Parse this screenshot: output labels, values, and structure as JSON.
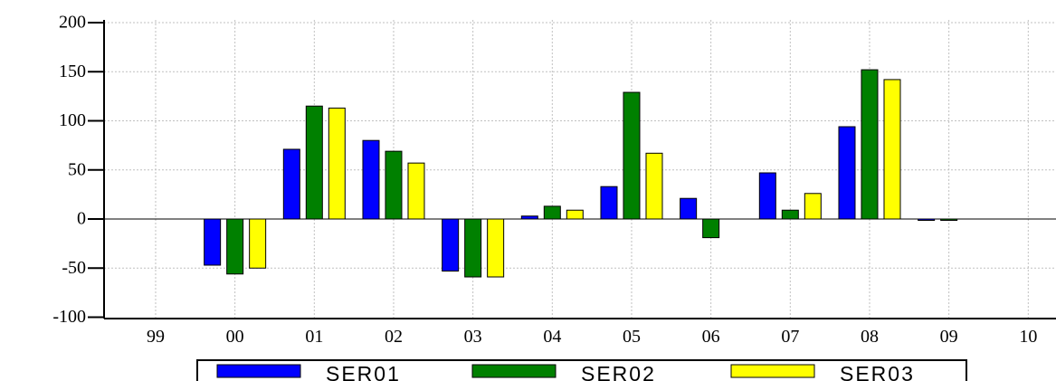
{
  "chart_data": {
    "type": "bar",
    "categories": [
      "99",
      "00",
      "01",
      "02",
      "03",
      "04",
      "05",
      "06",
      "07",
      "08",
      "09",
      "10"
    ],
    "series": [
      {
        "name": "SER01",
        "color": "#0000ff",
        "values": [
          null,
          -47,
          71,
          80,
          -53,
          3,
          33,
          21,
          47,
          94,
          -1,
          null
        ]
      },
      {
        "name": "SER02",
        "color": "#008000",
        "values": [
          null,
          -56,
          115,
          69,
          -59,
          13,
          129,
          -19,
          9,
          152,
          -1,
          null
        ]
      },
      {
        "name": "SER03",
        "color": "#ffff00",
        "values": [
          null,
          -50,
          113,
          57,
          -59,
          9,
          67,
          null,
          26,
          142,
          null,
          null
        ]
      }
    ],
    "yticks": [
      "200",
      "150",
      "100",
      "50",
      "0",
      "-50",
      "-100"
    ],
    "ylim": [
      -100,
      200
    ],
    "grid": true,
    "legend_position": "bottom",
    "title": "",
    "xlabel": "",
    "ylabel": ""
  }
}
